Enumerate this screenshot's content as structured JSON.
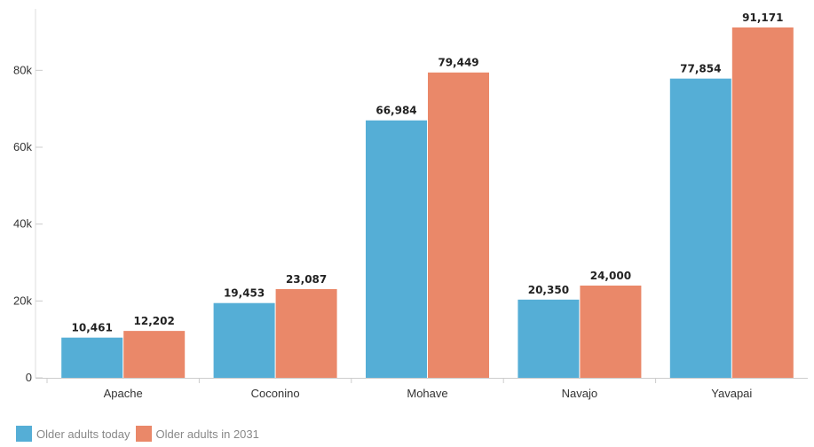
{
  "chart_data": {
    "type": "bar",
    "categories": [
      "Apache",
      "Coconino",
      "Mohave",
      "Navajo",
      "Yavapai"
    ],
    "series": [
      {
        "name": "Older adults today",
        "color": "#55aed6",
        "values": [
          10461,
          19453,
          66984,
          20350,
          77854
        ],
        "labels": [
          "10,461",
          "19,453",
          "66,984",
          "20,350",
          "77,854"
        ]
      },
      {
        "name": "Older adults in 2031",
        "color": "#ea8869",
        "values": [
          12202,
          23087,
          79449,
          24000,
          91171
        ],
        "labels": [
          "12,202",
          "23,087",
          "79,449",
          "24,000",
          "91,171"
        ]
      }
    ],
    "ylim": [
      0,
      96000
    ],
    "yticks": [
      0,
      20000,
      40000,
      60000,
      80000
    ],
    "ytick_labels": [
      "0",
      "20k",
      "40k",
      "60k",
      "80k"
    ],
    "title": "",
    "xlabel": "",
    "ylabel": "",
    "legend_position": "bottom-left",
    "grid": false
  }
}
